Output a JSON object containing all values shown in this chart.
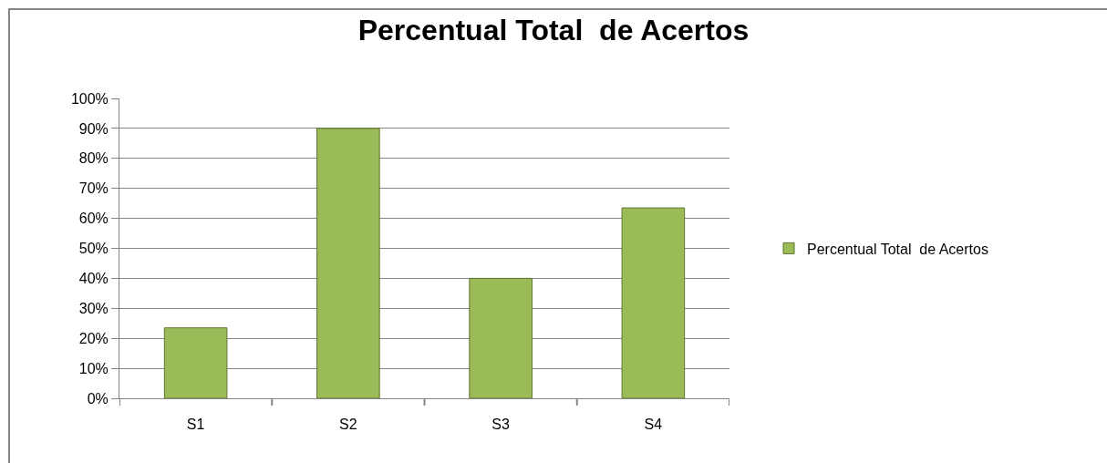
{
  "chart_data": {
    "type": "bar",
    "title": "Percentual Total  de Acertos",
    "categories": [
      "S1",
      "S2",
      "S3",
      "S4"
    ],
    "series": [
      {
        "name": "Percentual Total  de Acertos",
        "color": "#9bbb59",
        "values": [
          23.5,
          90,
          40,
          63.5
        ]
      }
    ],
    "ylim": [
      0,
      100
    ],
    "yticks": [
      {
        "value": 0,
        "label": "0%"
      },
      {
        "value": 10,
        "label": "10%"
      },
      {
        "value": 20,
        "label": "20%"
      },
      {
        "value": 30,
        "label": "30%"
      },
      {
        "value": 40,
        "label": "40%"
      },
      {
        "value": 50,
        "label": "50%"
      },
      {
        "value": 60,
        "label": "60%"
      },
      {
        "value": 70,
        "label": "70%"
      },
      {
        "value": 80,
        "label": "80%"
      },
      {
        "value": 90,
        "label": "90%"
      },
      {
        "value": 100,
        "label": "100%"
      }
    ],
    "grid": "y",
    "legend": "right"
  }
}
